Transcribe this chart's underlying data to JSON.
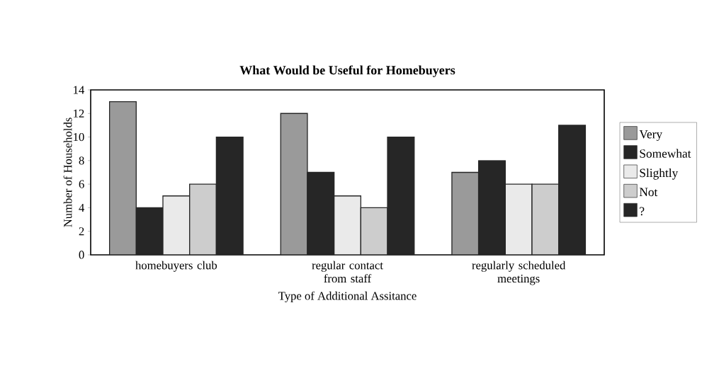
{
  "chart_data": {
    "type": "bar",
    "title": "What Would be Useful for Homebuyers",
    "xlabel": "Type of Additional Assitance",
    "ylabel": "Number of Households",
    "categories": [
      "homebuyers club",
      "regular contact from staff",
      "regularly scheduled meetings"
    ],
    "series": [
      {
        "name": "Very",
        "color": "#9a9a9a",
        "values": [
          13,
          12,
          7
        ]
      },
      {
        "name": "Somewhat",
        "color": "#262626",
        "values": [
          4,
          7,
          8
        ]
      },
      {
        "name": "Slightly",
        "color": "#eaeaea",
        "values": [
          5,
          5,
          6
        ]
      },
      {
        "name": "Not",
        "color": "#cdcdcd",
        "values": [
          6,
          4,
          6
        ]
      },
      {
        "name": "?",
        "color": "#262626",
        "values": [
          10,
          10,
          11
        ]
      }
    ],
    "ylim": [
      0,
      14
    ],
    "yticks": [
      0,
      2,
      4,
      6,
      8,
      10,
      12,
      14
    ],
    "legend": "right",
    "grid": false
  }
}
